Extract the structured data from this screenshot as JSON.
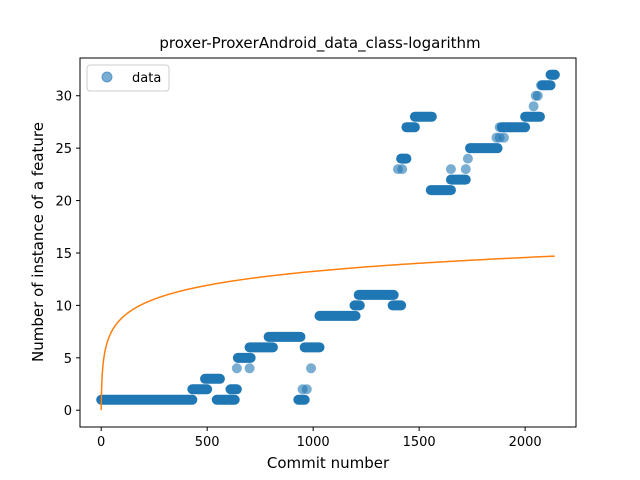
{
  "chart_data": {
    "type": "scatter",
    "title": "proxer-ProxerAndroid_data_class-logarithm",
    "xlabel": "Commit number",
    "ylabel": "Number of instance of a feature",
    "xlim": [
      -100,
      2240
    ],
    "ylim": [
      -1.6,
      33.6
    ],
    "xticks": [
      0,
      500,
      1000,
      1500,
      2000
    ],
    "yticks": [
      0,
      5,
      10,
      15,
      20,
      25,
      30
    ],
    "legend": {
      "position": "top-left",
      "entries": [
        "data"
      ]
    },
    "colors": {
      "data": "#1f77b4",
      "fit": "#ff7f0e"
    },
    "series": [
      {
        "name": "data",
        "kind": "scatter",
        "segments": [
          {
            "x0": 0,
            "x1": 430,
            "y": 1
          },
          {
            "x0": 430,
            "x1": 500,
            "y": 2
          },
          {
            "x0": 490,
            "x1": 560,
            "y": 3
          },
          {
            "x0": 545,
            "x1": 630,
            "y": 1
          },
          {
            "x0": 610,
            "x1": 640,
            "y": 2
          },
          {
            "x0": 645,
            "x1": 705,
            "y": 5
          },
          {
            "x0": 700,
            "x1": 810,
            "y": 6
          },
          {
            "x0": 790,
            "x1": 940,
            "y": 7
          },
          {
            "x0": 930,
            "x1": 960,
            "y": 1
          },
          {
            "x0": 960,
            "x1": 1030,
            "y": 6
          },
          {
            "x0": 1030,
            "x1": 1200,
            "y": 9
          },
          {
            "x0": 1195,
            "x1": 1220,
            "y": 10
          },
          {
            "x0": 1215,
            "x1": 1380,
            "y": 11
          },
          {
            "x0": 1375,
            "x1": 1415,
            "y": 10
          },
          {
            "x0": 1415,
            "x1": 1440,
            "y": 24
          },
          {
            "x0": 1440,
            "x1": 1480,
            "y": 27
          },
          {
            "x0": 1480,
            "x1": 1560,
            "y": 28
          },
          {
            "x0": 1555,
            "x1": 1650,
            "y": 21
          },
          {
            "x0": 1650,
            "x1": 1720,
            "y": 22
          },
          {
            "x0": 1740,
            "x1": 1870,
            "y": 25
          },
          {
            "x0": 1890,
            "x1": 2000,
            "y": 27
          },
          {
            "x0": 2000,
            "x1": 2070,
            "y": 28
          },
          {
            "x0": 2080,
            "x1": 2120,
            "y": 31
          },
          {
            "x0": 2120,
            "x1": 2140,
            "y": 32
          }
        ],
        "points": [
          {
            "x": 640,
            "y": 4
          },
          {
            "x": 700,
            "y": 4
          },
          {
            "x": 610,
            "y": 1
          },
          {
            "x": 970,
            "y": 2
          },
          {
            "x": 950,
            "y": 2
          },
          {
            "x": 990,
            "y": 4
          },
          {
            "x": 580,
            "y": 1
          },
          {
            "x": 1400,
            "y": 23
          },
          {
            "x": 1420,
            "y": 23
          },
          {
            "x": 1650,
            "y": 23
          },
          {
            "x": 1720,
            "y": 23
          },
          {
            "x": 1730,
            "y": 24
          },
          {
            "x": 1865,
            "y": 26
          },
          {
            "x": 1880,
            "y": 26
          },
          {
            "x": 1900,
            "y": 26
          },
          {
            "x": 1880,
            "y": 27
          },
          {
            "x": 1930,
            "y": 27
          },
          {
            "x": 2040,
            "y": 29
          },
          {
            "x": 2050,
            "y": 30
          },
          {
            "x": 2060,
            "y": 30
          },
          {
            "x": 2075,
            "y": 31
          },
          {
            "x": 2130,
            "y": 32
          },
          {
            "x": 2140,
            "y": 32
          },
          {
            "x": 1360,
            "y": 11
          }
        ]
      },
      {
        "kind": "line",
        "x_range": [
          0,
          2140
        ],
        "y_at_x0": 0,
        "y_at_x_max": 14.7
      }
    ]
  }
}
